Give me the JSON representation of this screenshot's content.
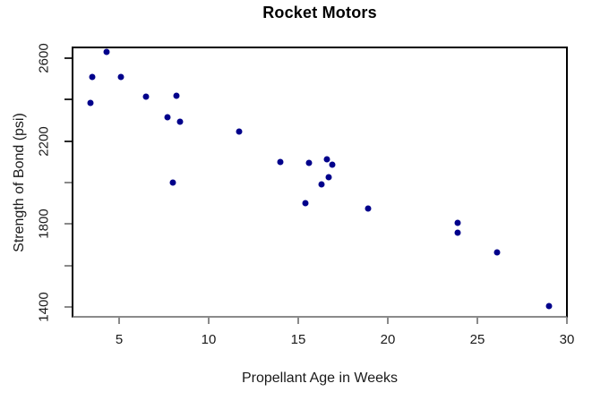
{
  "chart_data": {
    "type": "scatter",
    "title": "Rocket Motors",
    "xlabel": "Propellant Age in Weeks",
    "ylabel": "Strength of Bond (psi)",
    "x_ticks": [
      5,
      10,
      15,
      20,
      25,
      30
    ],
    "y_ticks": [
      1400,
      1600,
      1800,
      2000,
      2200,
      2400,
      2600
    ],
    "y_labeled_ticks": [
      1400,
      1800,
      2200,
      2600
    ],
    "xlim": [
      2.35,
      30.05
    ],
    "ylim": [
      1348,
      2656
    ],
    "grid": false,
    "legend_position": "none",
    "point_color": "#00008B",
    "points": [
      {
        "x": 3.4,
        "y": 2385
      },
      {
        "x": 3.5,
        "y": 2510
      },
      {
        "x": 4.3,
        "y": 2630
      },
      {
        "x": 5.1,
        "y": 2510
      },
      {
        "x": 6.5,
        "y": 2415
      },
      {
        "x": 7.7,
        "y": 2315
      },
      {
        "x": 8.0,
        "y": 2000
      },
      {
        "x": 8.2,
        "y": 2420
      },
      {
        "x": 8.4,
        "y": 2295
      },
      {
        "x": 11.7,
        "y": 2245
      },
      {
        "x": 14.0,
        "y": 2100
      },
      {
        "x": 15.4,
        "y": 1900
      },
      {
        "x": 15.6,
        "y": 2095
      },
      {
        "x": 16.3,
        "y": 1990
      },
      {
        "x": 16.6,
        "y": 2110
      },
      {
        "x": 16.7,
        "y": 2025
      },
      {
        "x": 16.9,
        "y": 2085
      },
      {
        "x": 18.9,
        "y": 1875
      },
      {
        "x": 23.9,
        "y": 1805
      },
      {
        "x": 23.9,
        "y": 1760
      },
      {
        "x": 26.1,
        "y": 1665
      },
      {
        "x": 29.0,
        "y": 1405
      }
    ]
  }
}
